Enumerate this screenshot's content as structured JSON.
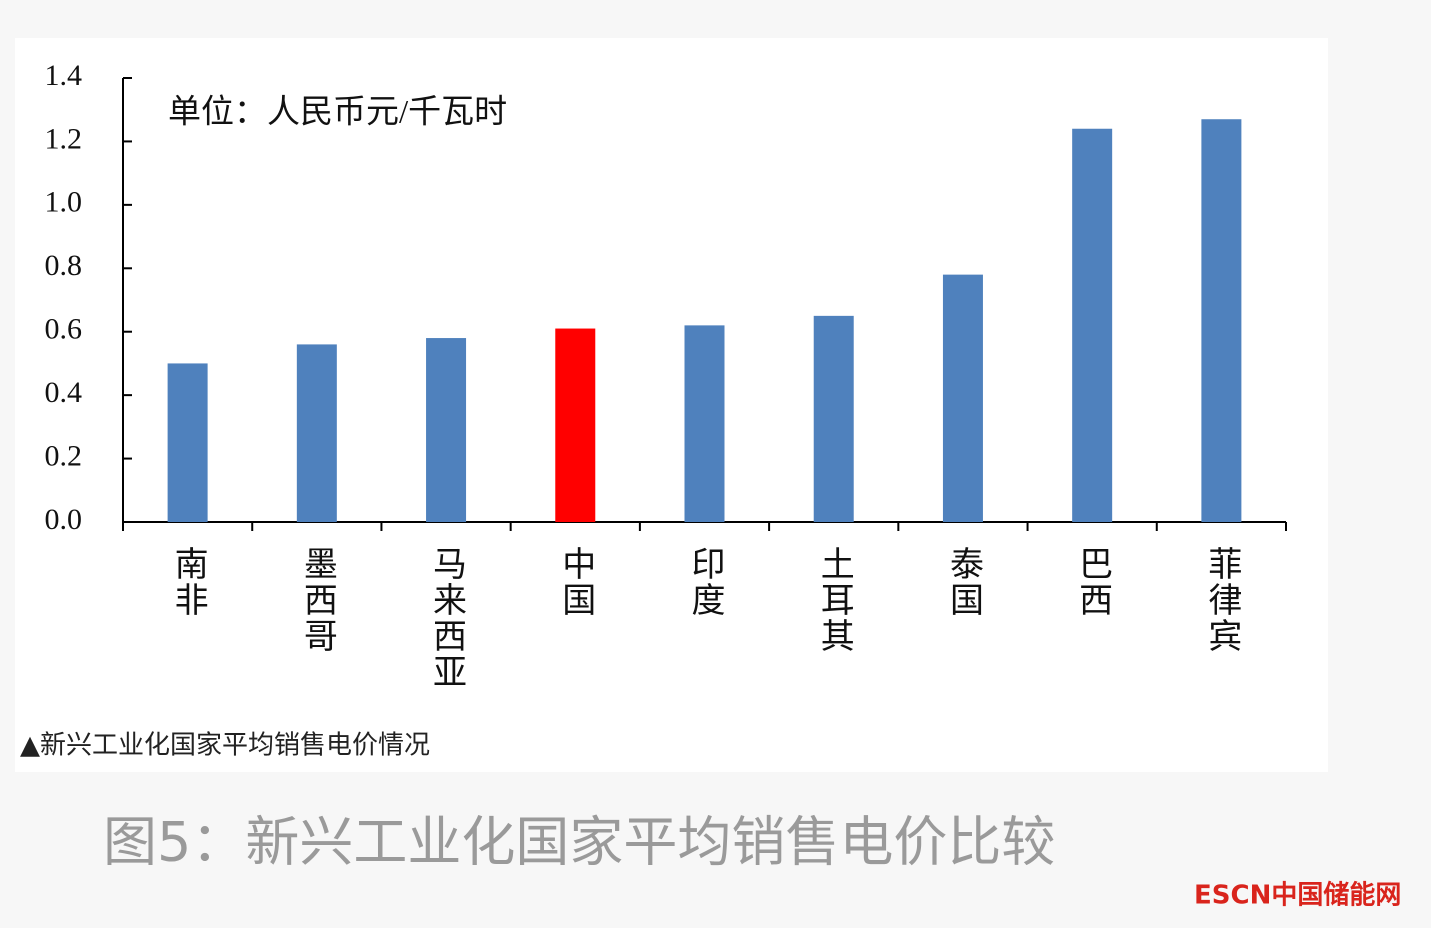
{
  "chart_data": {
    "type": "bar",
    "unit_note": "单位：人民币元/千瓦时",
    "caption": "▲新兴工业化国家平均销售电价情况",
    "title": "图5：新兴工业化国家平均销售电价比较",
    "logo": "ESCN中国储能网",
    "categories": [
      "南非",
      "墨西哥",
      "马来西亚",
      "中国",
      "印度",
      "土耳其",
      "泰国",
      "巴西",
      "菲律宾"
    ],
    "values": [
      0.5,
      0.56,
      0.58,
      0.61,
      0.62,
      0.65,
      0.78,
      1.24,
      1.27
    ],
    "colors": [
      "#4f81bd",
      "#4f81bd",
      "#4f81bd",
      "#ff0000",
      "#4f81bd",
      "#4f81bd",
      "#4f81bd",
      "#4f81bd",
      "#4f81bd"
    ],
    "ylim": [
      0,
      1.4
    ],
    "yticks": [
      {
        "value": 0,
        "label": "0.0"
      },
      0.2,
      0.4,
      0.6,
      0.8,
      {
        "value": 1,
        "label": "1.0"
      },
      1.2,
      1.4
    ]
  }
}
